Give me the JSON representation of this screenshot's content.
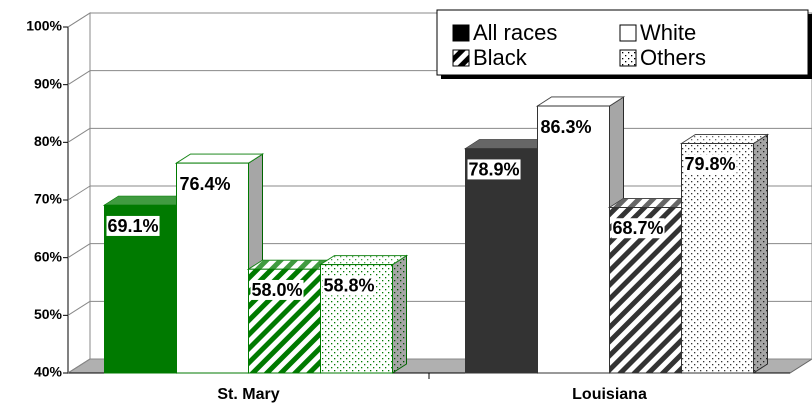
{
  "chart_data": {
    "type": "bar3d",
    "categories": [
      "St. Mary",
      "Louisiana"
    ],
    "category_colors": [
      "#007a00",
      "#333333"
    ],
    "legend_color": "#000000",
    "series": [
      {
        "name": "All races",
        "pattern": "solid",
        "values": [
          69.1,
          78.9
        ],
        "value_labels": [
          "69.1%",
          "78.9%"
        ]
      },
      {
        "name": "White",
        "pattern": "white",
        "values": [
          76.4,
          86.3
        ],
        "value_labels": [
          "76.4%",
          "86.3%"
        ]
      },
      {
        "name": "Black",
        "pattern": "hatch",
        "values": [
          58.0,
          68.7
        ],
        "value_labels": [
          "58.0%",
          "68.7%"
        ]
      },
      {
        "name": "Others",
        "pattern": "dots",
        "values": [
          58.8,
          79.8
        ],
        "value_labels": [
          "58.8%",
          "79.8%"
        ]
      }
    ],
    "ylim": [
      40,
      100
    ],
    "yticks": [
      {
        "value": 40,
        "label": "40%"
      },
      {
        "value": 50,
        "label": "50%"
      },
      {
        "value": 60,
        "label": "60%"
      },
      {
        "value": 70,
        "label": "70%"
      },
      {
        "value": 80,
        "label": "80%"
      },
      {
        "value": 90,
        "label": "90%"
      },
      {
        "value": 100,
        "label": "100%"
      }
    ],
    "grid": true,
    "legend": "top-right"
  }
}
